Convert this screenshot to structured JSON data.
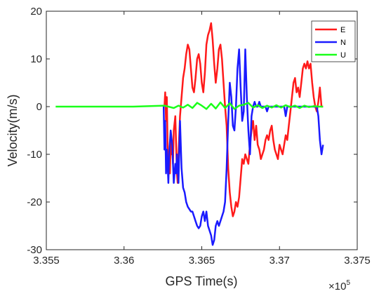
{
  "chart_data": {
    "type": "line",
    "title": "",
    "xlabel": "GPS Time(s)",
    "ylabel": "Velocity(m/s)",
    "x_exponent_label": "×10",
    "x_exponent_power": "5",
    "xlim": [
      3.355,
      3.375
    ],
    "ylim": [
      -30,
      20
    ],
    "xticks": [
      3.355,
      3.36,
      3.365,
      3.37,
      3.375
    ],
    "xtick_labels": [
      "3.355",
      "3.36",
      "3.365",
      "3.37",
      "3.375"
    ],
    "yticks": [
      -30,
      -20,
      -10,
      0,
      10,
      20
    ],
    "ytick_labels": [
      "-30",
      "-20",
      "-10",
      "0",
      "10",
      "20"
    ],
    "grid": false,
    "legend_position": "top-right",
    "series": [
      {
        "name": "E",
        "color": "#ff1a1a",
        "x": [
          3.3626,
          3.36265,
          3.3627,
          3.36275,
          3.3628,
          3.36285,
          3.3629,
          3.36295,
          3.363,
          3.36305,
          3.3631,
          3.36315,
          3.3632,
          3.3633,
          3.3634,
          3.36345,
          3.3635,
          3.3636,
          3.3637,
          3.3638,
          3.3639,
          3.364,
          3.3641,
          3.3642,
          3.3643,
          3.3644,
          3.3645,
          3.3646,
          3.3647,
          3.3648,
          3.3649,
          3.365,
          3.3651,
          3.3652,
          3.3653,
          3.3654,
          3.3655,
          3.3656,
          3.3657,
          3.3658,
          3.3659,
          3.366,
          3.3661,
          3.3662,
          3.3663,
          3.3664,
          3.3665,
          3.3666,
          3.3667,
          3.3668,
          3.3669,
          3.367,
          3.3671,
          3.3672,
          3.3673,
          3.3674,
          3.3675,
          3.3676,
          3.3677,
          3.3678,
          3.3679,
          3.368,
          3.3681,
          3.3682,
          3.3683,
          3.3684,
          3.3685,
          3.3686,
          3.3687,
          3.3688,
          3.3689,
          3.369,
          3.3691,
          3.3692,
          3.3693,
          3.3694,
          3.3695,
          3.3696,
          3.3697,
          3.3698,
          3.3699,
          3.37,
          3.3701,
          3.3702,
          3.3703,
          3.3704,
          3.3705,
          3.3706,
          3.3707,
          3.3708,
          3.3709,
          3.371,
          3.3711,
          3.3712,
          3.3713,
          3.3714,
          3.3715,
          3.3716,
          3.3717,
          3.3718,
          3.3719,
          3.372,
          3.3721,
          3.3722,
          3.3723,
          3.3724,
          3.3725,
          3.3726,
          3.3727,
          3.3728
        ],
        "y": [
          0,
          3,
          -3,
          2,
          -8,
          -14,
          -12,
          -14,
          -7,
          -10,
          -9,
          -12,
          -5,
          -2,
          -14,
          -16,
          -10,
          -2,
          2,
          6,
          8,
          11,
          13,
          12,
          8,
          4,
          3,
          6,
          10,
          11,
          9,
          5,
          3,
          7,
          13,
          15,
          16,
          17.5,
          14,
          9,
          5,
          8,
          12,
          13,
          10,
          5,
          0,
          -4,
          -13,
          -18,
          -21,
          -23,
          -22,
          -20,
          -21,
          -19,
          -15,
          -11,
          -12,
          -10,
          -11,
          -12,
          -8,
          -5,
          -3,
          -7,
          -4,
          -8,
          -9,
          -11,
          -10,
          -9,
          -7,
          -6,
          -7,
          -5,
          -4,
          -7,
          -9,
          -10,
          -11,
          -8,
          -9,
          -10,
          -8,
          -6,
          -7,
          -4,
          -1,
          2,
          5,
          6,
          3,
          4,
          2,
          5,
          8,
          9,
          8,
          9.5,
          8,
          9,
          5,
          2,
          0,
          -1,
          1,
          4,
          0,
          0
        ]
      },
      {
        "name": "N",
        "color": "#1a1aff",
        "x": [
          3.3625,
          3.36255,
          3.3626,
          3.36265,
          3.3627,
          3.36275,
          3.3628,
          3.36285,
          3.3629,
          3.363,
          3.3631,
          3.3632,
          3.3633,
          3.36335,
          3.3634,
          3.3635,
          3.3636,
          3.3637,
          3.3638,
          3.3639,
          3.364,
          3.3641,
          3.3642,
          3.3643,
          3.3644,
          3.3645,
          3.3646,
          3.3647,
          3.3648,
          3.3649,
          3.365,
          3.3651,
          3.3652,
          3.3653,
          3.3654,
          3.3655,
          3.3656,
          3.3657,
          3.3658,
          3.3659,
          3.366,
          3.3661,
          3.3662,
          3.3663,
          3.3664,
          3.3665,
          3.3666,
          3.3667,
          3.3668,
          3.3669,
          3.367,
          3.3671,
          3.3672,
          3.3673,
          3.3674,
          3.3675,
          3.3676,
          3.3677,
          3.3678,
          3.3679,
          3.368,
          3.3681,
          3.3682,
          3.3683,
          3.3684,
          3.3685,
          3.3686,
          3.3687,
          3.3688,
          3.3689,
          3.369,
          3.3691,
          3.3692,
          3.3693,
          3.3694,
          3.3695,
          3.3696,
          3.3697,
          3.3698,
          3.3699,
          3.37,
          3.3701,
          3.3702,
          3.3703,
          3.3704,
          3.3705,
          3.3706,
          3.3707,
          3.3708,
          3.3709,
          3.371,
          3.3711,
          3.3712,
          3.3713,
          3.3714,
          3.3715,
          3.3716,
          3.3717,
          3.3718,
          3.3719,
          3.372,
          3.3721,
          3.3722,
          3.3723,
          3.3724,
          3.3725,
          3.3726,
          3.3727,
          3.3728
        ],
        "y": [
          0,
          0,
          -9,
          -3,
          -14,
          -9,
          -12,
          -16,
          -10,
          -5,
          -8,
          -16,
          -12,
          -14,
          -10,
          -16,
          -3,
          -13,
          -17,
          -18,
          -20,
          -21,
          -21.5,
          -22,
          -22,
          -23,
          -24,
          -25,
          -25.5,
          -25,
          -23,
          -22,
          -24,
          -22,
          -25,
          -26,
          -27,
          -29,
          -28,
          -25,
          -24,
          -25,
          -24,
          -23,
          -22,
          -20,
          -13,
          -3,
          5,
          2,
          -4,
          -5,
          0,
          8,
          12,
          4,
          -3,
          -1,
          12,
          2,
          -5,
          -10,
          -2,
          0,
          1,
          0,
          0,
          1,
          0,
          0,
          0,
          0,
          -1,
          0,
          0,
          0,
          0,
          0,
          0,
          0,
          0,
          0,
          0,
          0,
          -2,
          0,
          0,
          0,
          0,
          0,
          0,
          0,
          0,
          0,
          0,
          0,
          0,
          0,
          0,
          0,
          0,
          0,
          0,
          0,
          0,
          -2,
          -7,
          -10,
          -8
        ]
      },
      {
        "name": "U",
        "color": "#1aff1a",
        "x": [
          3.3556,
          3.3606,
          3.3626,
          3.3632,
          3.3635,
          3.3638,
          3.3641,
          3.3644,
          3.3647,
          3.365,
          3.3653,
          3.3656,
          3.3659,
          3.3662,
          3.3665,
          3.3668,
          3.3671,
          3.3674,
          3.3677,
          3.368,
          3.3683,
          3.3686,
          3.3689,
          3.3692,
          3.3695,
          3.3698,
          3.3701,
          3.3704,
          3.3707,
          3.371,
          3.3713,
          3.3716,
          3.3719,
          3.3722,
          3.3725,
          3.3728
        ],
        "y": [
          0,
          0,
          0.2,
          -0.3,
          0.2,
          -0.2,
          0.4,
          -0.3,
          0.8,
          0.2,
          -0.5,
          0.6,
          -0.4,
          0.9,
          -0.3,
          0.7,
          -0.5,
          0.2,
          0.4,
          0.8,
          -0.2,
          0.3,
          -0.3,
          0.2,
          -0.2,
          0.3,
          -0.2,
          0.3,
          -0.1,
          0.2,
          -0.3,
          0.2,
          -0.1,
          0.1,
          0,
          0
        ]
      }
    ]
  }
}
